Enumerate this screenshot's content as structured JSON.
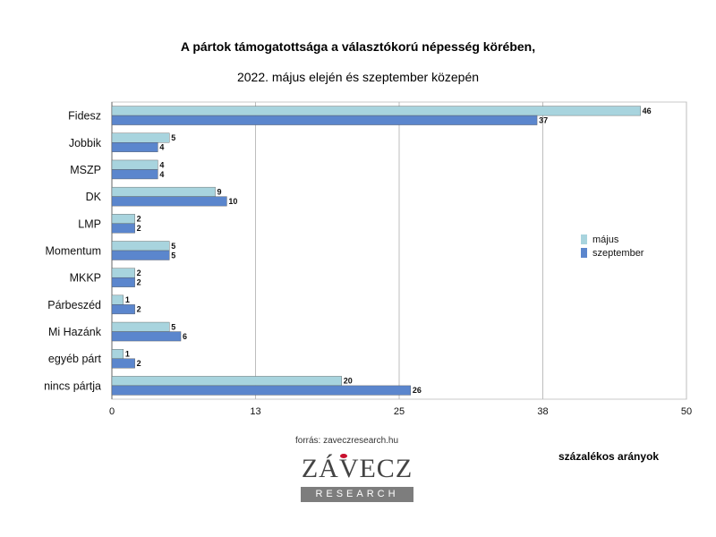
{
  "header": {
    "title": "A pártok támogatottsága a választókorú népesség körében,",
    "subtitle": "2022. május elején és szeptember közepén"
  },
  "chart_data": {
    "type": "bar",
    "orientation": "horizontal",
    "categories": [
      "Fidesz",
      "Jobbik",
      "MSZP",
      "DK",
      "LMP",
      "Momentum",
      "MKKP",
      "Párbeszéd",
      "Mi Hazánk",
      "egyéb párt",
      "nincs pártja"
    ],
    "series": [
      {
        "name": "május",
        "color": "#a8d4de",
        "values": [
          46,
          5,
          4,
          9,
          2,
          5,
          2,
          1,
          5,
          1,
          20
        ]
      },
      {
        "name": "szeptember",
        "color": "#5b86cd",
        "values": [
          37,
          4,
          4,
          10,
          2,
          5,
          2,
          2,
          6,
          2,
          26
        ]
      }
    ],
    "xlim": [
      0,
      50
    ],
    "xticks": [
      "0",
      "13",
      "25",
      "38",
      "50"
    ],
    "xgrid": true,
    "legend_position": "right"
  },
  "footer": {
    "source": "forrás: zaveczresearch.hu",
    "unit_note": "százalékos arányok",
    "logo_word": "ZÁVECZ",
    "logo_sub": "RESEARCH"
  }
}
